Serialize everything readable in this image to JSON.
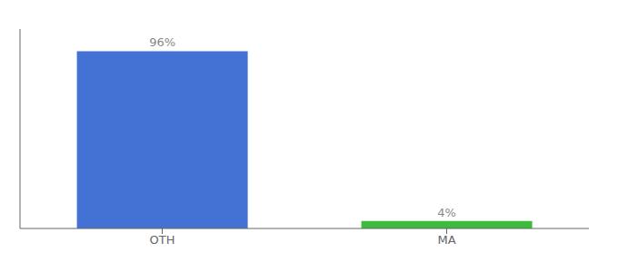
{
  "chart_data": {
    "type": "bar",
    "categories": [
      "OTH",
      "MA"
    ],
    "values": [
      96,
      4
    ],
    "value_labels": [
      "96%",
      "4%"
    ],
    "colors": [
      "#4472d4",
      "#3dbb3d"
    ],
    "ylim": [
      0,
      108
    ],
    "data_labels": true,
    "tick_labels": "x",
    "grid": false
  }
}
